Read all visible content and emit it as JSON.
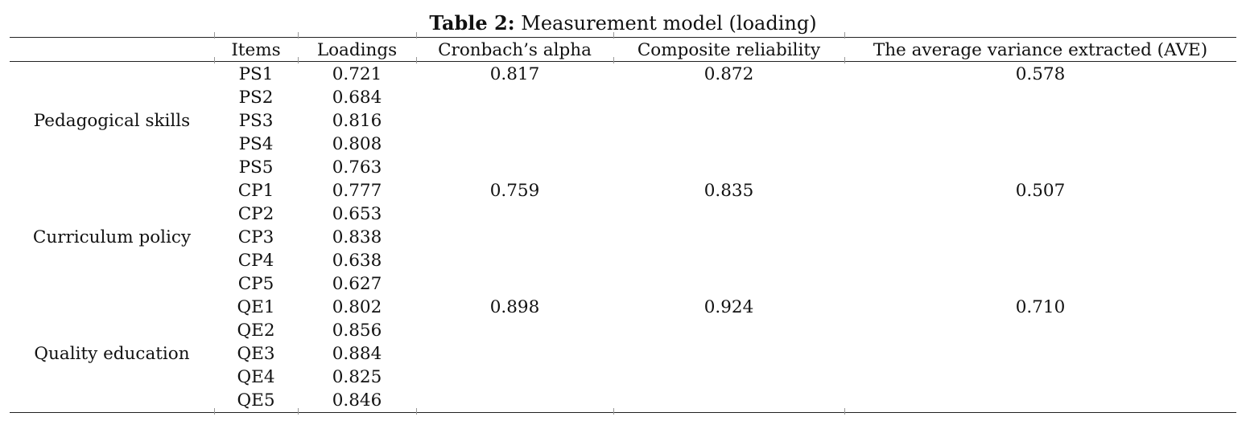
{
  "caption": {
    "label": "Table 2:",
    "text": "Measurement model (loading)"
  },
  "table": {
    "headers": {
      "construct": "",
      "items": "Items",
      "loadings": "Loadings",
      "alpha": "Cronbach’s alpha",
      "cr": "Composite reliability",
      "ave": "The average variance extracted (AVE)"
    },
    "groups": [
      {
        "construct": "Pedagogical skills",
        "alpha": "0.817",
        "cr": "0.872",
        "ave": "0.578",
        "rows": [
          {
            "item": "PS1",
            "loading": "0.721"
          },
          {
            "item": "PS2",
            "loading": "0.684"
          },
          {
            "item": "PS3",
            "loading": "0.816"
          },
          {
            "item": "PS4",
            "loading": "0.808"
          },
          {
            "item": "PS5",
            "loading": "0.763"
          }
        ]
      },
      {
        "construct": "Curriculum policy",
        "alpha": "0.759",
        "cr": "0.835",
        "ave": "0.507",
        "rows": [
          {
            "item": "CP1",
            "loading": "0.777"
          },
          {
            "item": "CP2",
            "loading": "0.653"
          },
          {
            "item": "CP3",
            "loading": "0.838"
          },
          {
            "item": "CP4",
            "loading": "0.638"
          },
          {
            "item": "CP5",
            "loading": "0.627"
          }
        ]
      },
      {
        "construct": "Quality education",
        "alpha": "0.898",
        "cr": "0.924",
        "ave": "0.710",
        "rows": [
          {
            "item": "QE1",
            "loading": "0.802"
          },
          {
            "item": "QE2",
            "loading": "0.856"
          },
          {
            "item": "QE3",
            "loading": "0.884"
          },
          {
            "item": "QE4",
            "loading": "0.825"
          },
          {
            "item": "QE5",
            "loading": "0.846"
          }
        ]
      }
    ]
  }
}
